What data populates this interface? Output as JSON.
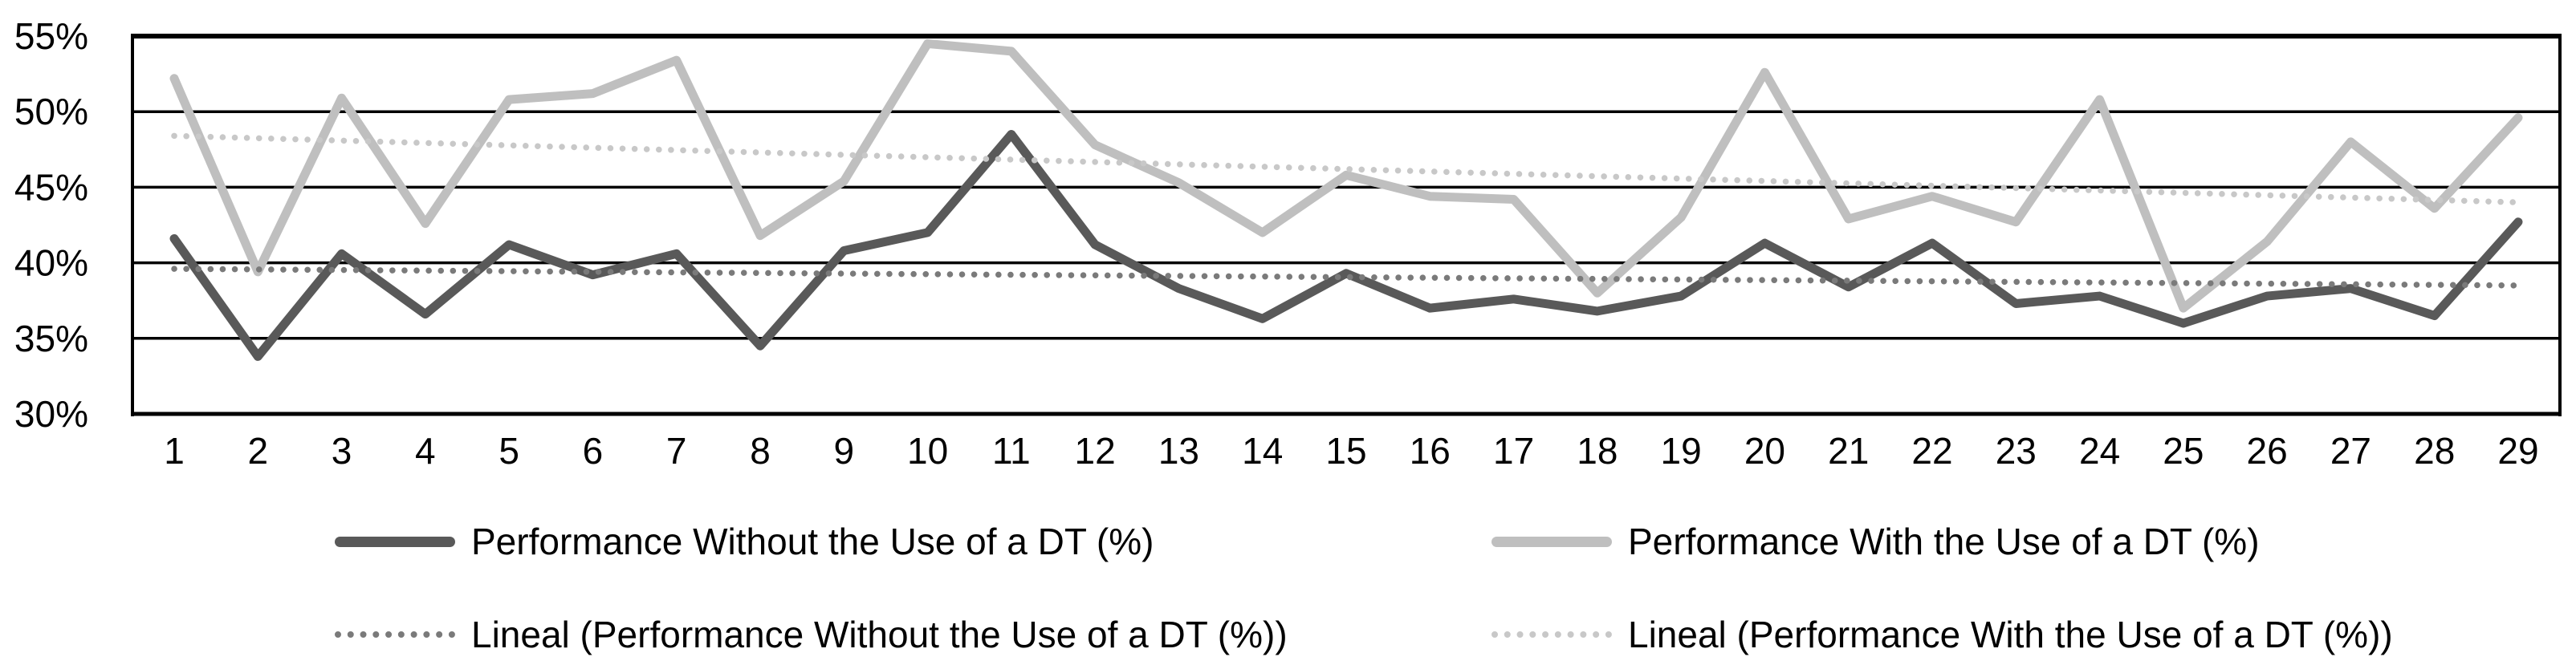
{
  "chart_data": {
    "type": "line",
    "title": "",
    "xlabel": "",
    "ylabel": "",
    "x": [
      1,
      2,
      3,
      4,
      5,
      6,
      7,
      8,
      9,
      10,
      11,
      12,
      13,
      14,
      15,
      16,
      17,
      18,
      19,
      20,
      21,
      22,
      23,
      24,
      25,
      26,
      27,
      28,
      29
    ],
    "ylim": [
      30,
      55
    ],
    "ytick_step": 5,
    "ytick_labels": [
      "30%",
      "35%",
      "40%",
      "45%",
      "50%",
      "55%"
    ],
    "grid": "horizontal-only",
    "legend_position": "bottom",
    "series": [
      {
        "name": "Performance Without the Use of a DT (%)",
        "style": "solid",
        "color": "#595959",
        "values": [
          41.6,
          33.8,
          40.6,
          36.6,
          41.2,
          39.2,
          40.6,
          34.5,
          40.8,
          42.0,
          48.5,
          41.2,
          38.3,
          36.3,
          39.3,
          37.0,
          37.6,
          36.8,
          37.8,
          41.3,
          38.4,
          41.3,
          37.3,
          37.8,
          36.0,
          37.8,
          38.3,
          36.5,
          42.7
        ]
      },
      {
        "name": "Performance With the Use of a DT (%)",
        "style": "solid",
        "color": "#bfbfbf",
        "values": [
          52.2,
          39.4,
          50.9,
          42.6,
          50.8,
          51.2,
          53.4,
          41.8,
          45.4,
          54.5,
          54.0,
          47.8,
          45.3,
          42.0,
          45.8,
          44.4,
          44.2,
          38.0,
          43.0,
          52.6,
          42.9,
          44.4,
          42.7,
          50.8,
          37.0,
          41.4,
          48.0,
          43.6,
          49.6
        ]
      },
      {
        "name": "Lineal (Performance Without the Use of a DT (%))",
        "style": "dotted",
        "color": "#7a7a7a",
        "trend_start": 39.6,
        "trend_end": 38.5
      },
      {
        "name": "Lineal (Performance With the Use of a DT (%))",
        "style": "dotted",
        "color": "#c8c8c8",
        "trend_start": 48.4,
        "trend_end": 44.0
      }
    ]
  }
}
